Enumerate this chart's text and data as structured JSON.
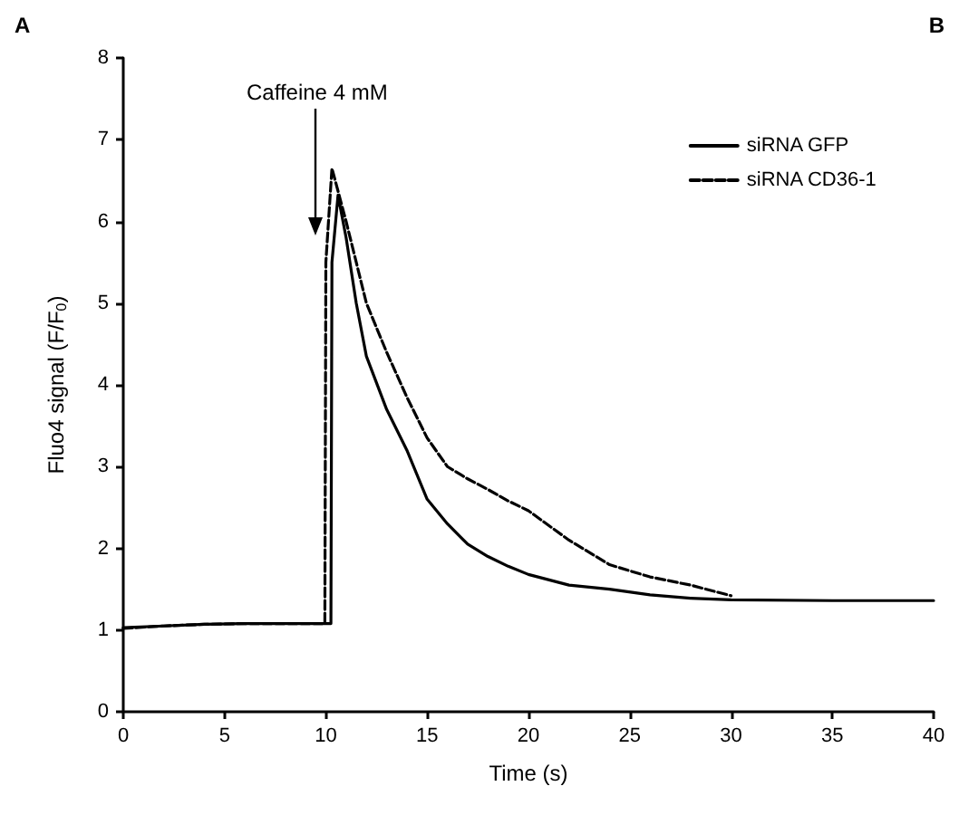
{
  "chart_data": {
    "type": "line",
    "xlabel": "Time (s)",
    "ylabel": "Fluo4 signal (F/F$_{0}$)",
    "xlim": [
      0,
      40
    ],
    "xticks": [
      0,
      5,
      10,
      15,
      20,
      25,
      30,
      35,
      40
    ],
    "ylim": [
      0,
      8
    ],
    "yticks": [
      0,
      1,
      2,
      3,
      4,
      5,
      6,
      7,
      8
    ],
    "grid": false,
    "legend": "top right",
    "marker": "none",
    "annotations": [
      "A",
      "B",
      "Caffeine 4 mM"
    ],
    "series": [
      {
        "name": "siRNA GFP",
        "color": "#000000",
        "line_style": "solid",
        "x": [
          0,
          2,
          4,
          6,
          8,
          10,
          10.25,
          10.3,
          10.6,
          11,
          11.5,
          12,
          13,
          14,
          15,
          16,
          17,
          18,
          19,
          20,
          22,
          24,
          26,
          28,
          30,
          35,
          40
        ],
        "values": [
          1.03,
          1.05,
          1.07,
          1.08,
          1.08,
          1.08,
          1.08,
          5.5,
          6.32,
          5.8,
          5.0,
          4.35,
          3.7,
          3.2,
          2.6,
          2.3,
          2.05,
          1.9,
          1.78,
          1.68,
          1.55,
          1.5,
          1.43,
          1.39,
          1.37,
          1.36,
          1.36
        ]
      },
      {
        "name": "siRNA CD36-1",
        "color": "#000000",
        "line_style": "dashed",
        "x": [
          0,
          2,
          4,
          6,
          8,
          9.95,
          10.0,
          10.3,
          11,
          12,
          13,
          14,
          15,
          16,
          17,
          18,
          19,
          20,
          22,
          24,
          26,
          28,
          30
        ],
        "values": [
          1.02,
          1.05,
          1.07,
          1.08,
          1.08,
          1.08,
          5.5,
          6.65,
          6.0,
          5.0,
          4.4,
          3.85,
          3.35,
          3.0,
          2.85,
          2.72,
          2.58,
          2.46,
          2.1,
          1.8,
          1.65,
          1.55,
          1.42
        ]
      }
    ]
  }
}
